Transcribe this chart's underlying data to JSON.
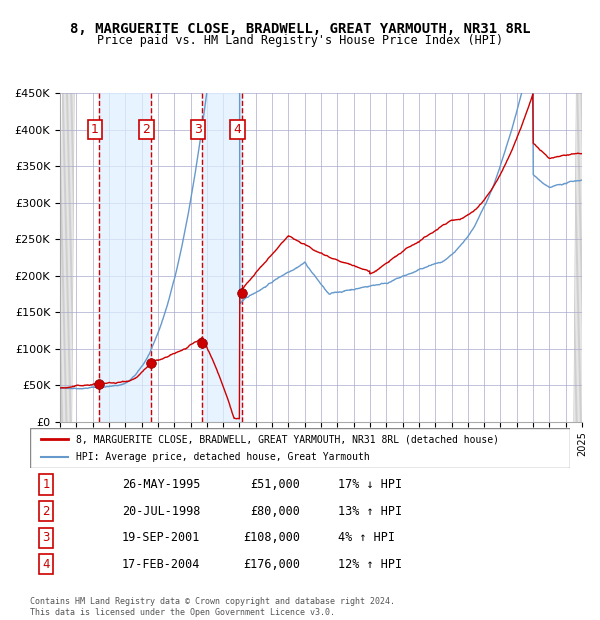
{
  "title": "8, MARGUERITE CLOSE, BRADWELL, GREAT YARMOUTH, NR31 8RL",
  "subtitle": "Price paid vs. HM Land Registry's House Price Index (HPI)",
  "ylabel": "",
  "ylim": [
    0,
    450000
  ],
  "yticks": [
    0,
    50000,
    100000,
    150000,
    200000,
    250000,
    300000,
    350000,
    400000,
    450000
  ],
  "ytick_labels": [
    "£0",
    "£50K",
    "£100K",
    "£150K",
    "£200K",
    "£250K",
    "£300K",
    "£350K",
    "£400K",
    "£450K"
  ],
  "transactions": [
    {
      "date": 1995.4,
      "price": 51000,
      "label": "1"
    },
    {
      "date": 1998.55,
      "price": 80000,
      "label": "2"
    },
    {
      "date": 2001.72,
      "price": 108000,
      "label": "3"
    },
    {
      "date": 2004.13,
      "price": 176000,
      "label": "4"
    }
  ],
  "legend_entries": [
    "8, MARGUERITE CLOSE, BRADWELL, GREAT YARMOUTH, NR31 8RL (detached house)",
    "HPI: Average price, detached house, Great Yarmouth"
  ],
  "table_rows": [
    {
      "num": "1",
      "date": "26-MAY-1995",
      "price": "£51,000",
      "hpi": "17% ↓ HPI"
    },
    {
      "num": "2",
      "date": "20-JUL-1998",
      "price": "£80,000",
      "hpi": "13% ↑ HPI"
    },
    {
      "num": "3",
      "date": "19-SEP-2001",
      "price": "£108,000",
      "hpi": "4% ↑ HPI"
    },
    {
      "num": "4",
      "date": "17-FEB-2004",
      "price": "£176,000",
      "hpi": "12% ↑ HPI"
    }
  ],
  "footer": "Contains HM Land Registry data © Crown copyright and database right 2024.\nThis data is licensed under the Open Government Licence v3.0.",
  "property_line_color": "#cc0000",
  "hpi_line_color": "#6699cc",
  "transaction_marker_color": "#cc0000",
  "vline_color": "#cc0000",
  "shade_color": "#ddeeff",
  "hatch_color": "#aaaaaa",
  "grid_color": "#aaaacc",
  "background_color": "#ffffff"
}
